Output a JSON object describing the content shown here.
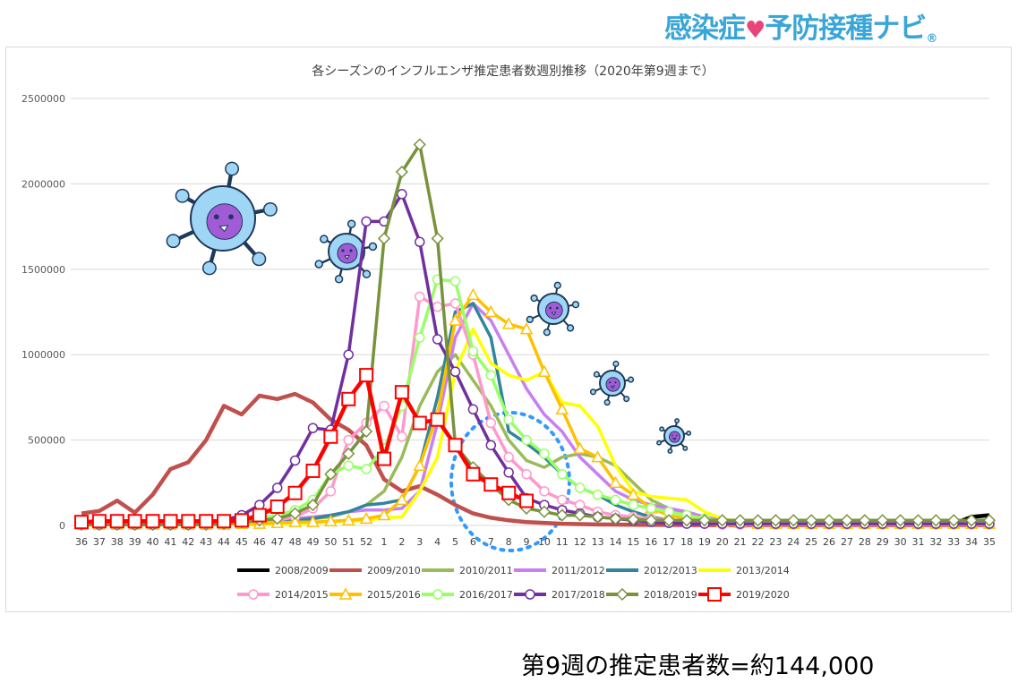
{
  "logo": {
    "text_a": "感染症",
    "text_b": "予防接種ナビ",
    "reg": "®"
  },
  "summary": "第9週の推定患者数=約144,000",
  "colors": {
    "2008/2009": "#000000",
    "2009/2010": "#c0504d",
    "2010/2011": "#9bbb59",
    "2011/2012": "#c77ff2",
    "2012/2013": "#31859c",
    "2013/2014": "#ffff00",
    "2014/2015": "#ff99cc",
    "2015/2016": "#ffc000",
    "2016/2017": "#99ff66",
    "2017/2018": "#7030a0",
    "2018/2019": "#77933c",
    "2019/2020": "#ff0000",
    "highlight": "#3399ff",
    "grid": "#d9d9d9"
  },
  "chart_data": {
    "type": "line",
    "title": "各シーズンのインフルエンザ推定患者数週別推移（2020年第9週まで）",
    "xlabel": "",
    "ylabel": "",
    "ylim": [
      0,
      2500000
    ],
    "yticks": [
      "0",
      "500000",
      "1000000",
      "1500000",
      "2000000",
      "2500000"
    ],
    "grid": true,
    "legend_position": "bottom",
    "categories": [
      "36",
      "37",
      "38",
      "39",
      "40",
      "41",
      "42",
      "43",
      "44",
      "45",
      "46",
      "47",
      "48",
      "49",
      "50",
      "51",
      "52",
      "1",
      "2",
      "3",
      "4",
      "5",
      "6",
      "7",
      "8",
      "9",
      "10",
      "11",
      "12",
      "13",
      "14",
      "15",
      "16",
      "17",
      "18",
      "19",
      "20",
      "21",
      "22",
      "23",
      "24",
      "25",
      "26",
      "27",
      "28",
      "29",
      "30",
      "31",
      "32",
      "33",
      "34",
      "35"
    ],
    "annotation": "dotted ellipse around weeks 5-11",
    "series": [
      {
        "name": "2008/2009",
        "marker": "none",
        "values": [
          null,
          null,
          null,
          null,
          null,
          null,
          null,
          null,
          null,
          null,
          null,
          null,
          null,
          null,
          null,
          null,
          null,
          null,
          null,
          null,
          null,
          null,
          null,
          null,
          null,
          null,
          null,
          null,
          null,
          null,
          null,
          null,
          null,
          null,
          null,
          null,
          null,
          null,
          null,
          null,
          null,
          null,
          null,
          null,
          null,
          null,
          null,
          null,
          null,
          10000,
          50000,
          60000
        ]
      },
      {
        "name": "2009/2010",
        "marker": "none",
        "values": [
          70000,
          85000,
          145000,
          75000,
          180000,
          330000,
          370000,
          500000,
          700000,
          650000,
          760000,
          740000,
          770000,
          720000,
          620000,
          560000,
          470000,
          270000,
          200000,
          230000,
          180000,
          120000,
          70000,
          45000,
          30000,
          20000,
          15000,
          10000,
          8000,
          6000,
          5000,
          4000,
          3000,
          3000,
          2000,
          2000,
          2000,
          2000,
          2000,
          2000,
          2000,
          2000,
          2000,
          2000,
          2000,
          2000,
          2000,
          2000,
          2000,
          2000,
          2000,
          2000
        ]
      },
      {
        "name": "2010/2011",
        "marker": "none",
        "values": [
          5000,
          5000,
          5000,
          5000,
          5000,
          5000,
          5000,
          5000,
          10000,
          10000,
          15000,
          20000,
          30000,
          40000,
          50000,
          80000,
          120000,
          200000,
          400000,
          700000,
          900000,
          1000000,
          850000,
          700000,
          500000,
          380000,
          340000,
          400000,
          420000,
          400000,
          350000,
          250000,
          150000,
          100000,
          60000,
          40000,
          30000,
          20000,
          15000,
          10000,
          10000,
          10000,
          10000,
          10000,
          10000,
          10000,
          10000,
          10000,
          10000,
          10000,
          10000,
          10000
        ]
      },
      {
        "name": "2011/2012",
        "marker": "none",
        "values": [
          5000,
          5000,
          5000,
          5000,
          5000,
          5000,
          5000,
          10000,
          10000,
          15000,
          20000,
          30000,
          40000,
          50000,
          60000,
          80000,
          90000,
          90000,
          100000,
          200000,
          600000,
          1100000,
          1300000,
          1200000,
          1000000,
          800000,
          650000,
          550000,
          400000,
          300000,
          200000,
          150000,
          120000,
          100000,
          80000,
          50000,
          30000,
          20000,
          15000,
          10000,
          10000,
          10000,
          10000,
          10000,
          10000,
          10000,
          10000,
          10000,
          10000,
          10000,
          10000,
          10000
        ]
      },
      {
        "name": "2012/2013",
        "marker": "none",
        "values": [
          5000,
          5000,
          5000,
          5000,
          5000,
          5000,
          5000,
          5000,
          10000,
          10000,
          15000,
          20000,
          30000,
          40000,
          60000,
          80000,
          120000,
          130000,
          150000,
          350000,
          750000,
          1250000,
          1300000,
          1100000,
          550000,
          480000,
          400000,
          300000,
          220000,
          180000,
          120000,
          80000,
          50000,
          30000,
          20000,
          15000,
          10000,
          10000,
          10000,
          10000,
          10000,
          10000,
          10000,
          10000,
          10000,
          10000,
          10000,
          10000,
          10000,
          10000,
          10000,
          10000
        ]
      },
      {
        "name": "2013/2014",
        "marker": "none",
        "values": [
          3000,
          3000,
          3000,
          3000,
          3000,
          3000,
          3000,
          3000,
          5000,
          5000,
          5000,
          10000,
          10000,
          15000,
          20000,
          25000,
          30000,
          45000,
          50000,
          200000,
          400000,
          900000,
          1150000,
          950000,
          880000,
          850000,
          900000,
          720000,
          700000,
          580000,
          350000,
          200000,
          170000,
          160000,
          150000,
          80000,
          40000,
          20000,
          15000,
          10000,
          10000,
          10000,
          10000,
          10000,
          10000,
          10000,
          10000,
          10000,
          10000,
          10000,
          10000,
          10000
        ]
      },
      {
        "name": "2014/2015",
        "marker": "circle",
        "values": [
          5000,
          5000,
          5000,
          5000,
          5000,
          5000,
          5000,
          5000,
          10000,
          15000,
          20000,
          30000,
          50000,
          100000,
          200000,
          500000,
          600000,
          700000,
          520000,
          1340000,
          1280000,
          1300000,
          1000000,
          600000,
          400000,
          300000,
          200000,
          150000,
          120000,
          80000,
          60000,
          50000,
          40000,
          30000,
          20000,
          10000,
          5000,
          5000,
          5000,
          5000,
          5000,
          5000,
          5000,
          5000,
          5000,
          5000,
          5000,
          5000,
          5000,
          5000,
          5000,
          5000
        ]
      },
      {
        "name": "2015/2016",
        "marker": "triangle",
        "values": [
          5000,
          5000,
          5000,
          5000,
          5000,
          5000,
          5000,
          5000,
          5000,
          10000,
          10000,
          15000,
          20000,
          20000,
          25000,
          30000,
          40000,
          60000,
          150000,
          350000,
          650000,
          1200000,
          1350000,
          1250000,
          1180000,
          1150000,
          900000,
          680000,
          450000,
          400000,
          250000,
          180000,
          100000,
          60000,
          40000,
          30000,
          20000,
          15000,
          10000,
          10000,
          10000,
          10000,
          10000,
          10000,
          10000,
          10000,
          10000,
          10000,
          10000,
          10000,
          10000,
          10000
        ]
      },
      {
        "name": "2016/2017",
        "marker": "circle",
        "values": [
          5000,
          5000,
          5000,
          5000,
          5000,
          5000,
          5000,
          10000,
          20000,
          30000,
          40000,
          60000,
          90000,
          150000,
          300000,
          350000,
          330000,
          450000,
          700000,
          1100000,
          1440000,
          1430000,
          1020000,
          880000,
          620000,
          500000,
          420000,
          300000,
          220000,
          180000,
          150000,
          120000,
          100000,
          80000,
          60000,
          40000,
          25000,
          15000,
          10000,
          10000,
          10000,
          10000,
          10000,
          10000,
          10000,
          10000,
          10000,
          10000,
          10000,
          10000,
          10000,
          10000
        ]
      },
      {
        "name": "2017/2018",
        "marker": "circle",
        "values": [
          5000,
          5000,
          5000,
          5000,
          5000,
          5000,
          5000,
          10000,
          30000,
          60000,
          120000,
          220000,
          380000,
          570000,
          560000,
          1000000,
          1780000,
          1780000,
          1940000,
          1660000,
          1090000,
          900000,
          680000,
          470000,
          310000,
          160000,
          120000,
          90000,
          70000,
          50000,
          40000,
          30000,
          20000,
          15000,
          10000,
          10000,
          10000,
          10000,
          10000,
          10000,
          10000,
          10000,
          10000,
          10000,
          10000,
          10000,
          10000,
          10000,
          10000,
          10000,
          10000,
          10000
        ]
      },
      {
        "name": "2018/2019",
        "marker": "diamond",
        "values": [
          5000,
          5000,
          5000,
          5000,
          5000,
          5000,
          5000,
          5000,
          10000,
          20000,
          30000,
          40000,
          70000,
          120000,
          300000,
          420000,
          550000,
          1680000,
          2070000,
          2230000,
          1680000,
          470000,
          340000,
          240000,
          150000,
          100000,
          80000,
          60000,
          60000,
          50000,
          40000,
          35000,
          30000,
          30000,
          30000,
          30000,
          30000,
          30000,
          30000,
          30000,
          30000,
          30000,
          30000,
          30000,
          30000,
          30000,
          30000,
          30000,
          30000,
          30000,
          30000,
          30000
        ]
      },
      {
        "name": "2019/2020",
        "marker": "square",
        "values": [
          20000,
          25000,
          25000,
          25000,
          25000,
          25000,
          25000,
          25000,
          25000,
          30000,
          60000,
          110000,
          190000,
          320000,
          520000,
          740000,
          880000,
          390000,
          780000,
          600000,
          620000,
          470000,
          300000,
          240000,
          190000,
          144000,
          null,
          null,
          null,
          null,
          null,
          null,
          null,
          null,
          null,
          null,
          null,
          null,
          null,
          null,
          null,
          null,
          null,
          null,
          null,
          null,
          null,
          null,
          null,
          null,
          null,
          null
        ]
      }
    ]
  }
}
